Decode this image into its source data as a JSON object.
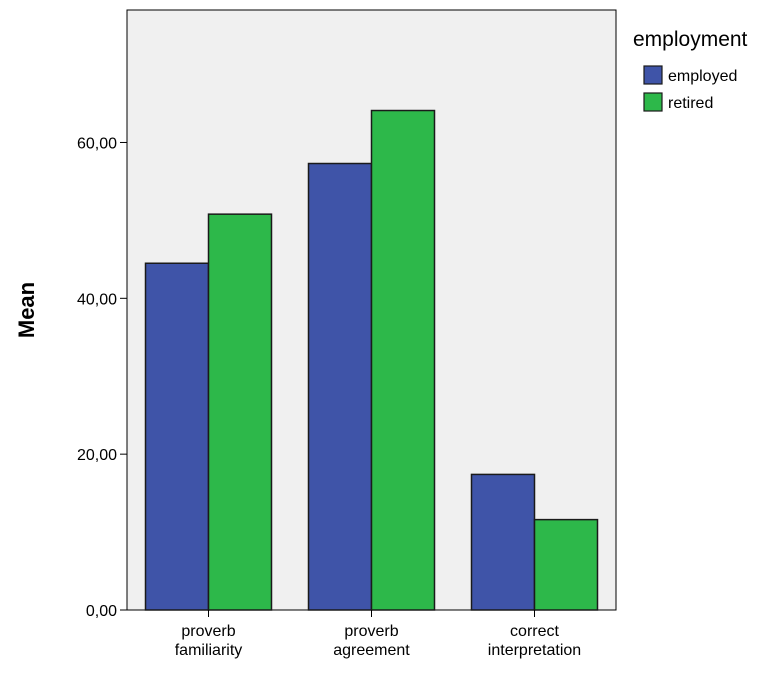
{
  "chart_data": {
    "type": "bar",
    "categories": [
      [
        "proverb",
        "familiarity"
      ],
      [
        "proverb",
        "agreement"
      ],
      [
        "correct",
        "interpretation"
      ]
    ],
    "series": [
      {
        "name": "employed",
        "values": [
          44.5,
          57.3,
          17.4
        ],
        "color": "#3f54a8"
      },
      {
        "name": "retired",
        "values": [
          50.8,
          64.1,
          11.6
        ],
        "color": "#2db84a"
      }
    ],
    "ylabel": "Mean",
    "yticks": [
      0,
      20,
      40,
      60
    ],
    "ytick_labels": [
      "0,00",
      "20,00",
      "40,00",
      "60,00"
    ],
    "ylim": [
      0,
      77
    ],
    "legend_title": "employment",
    "legend_position": "top-right",
    "background": "#f0f0f0",
    "grid": false
  }
}
